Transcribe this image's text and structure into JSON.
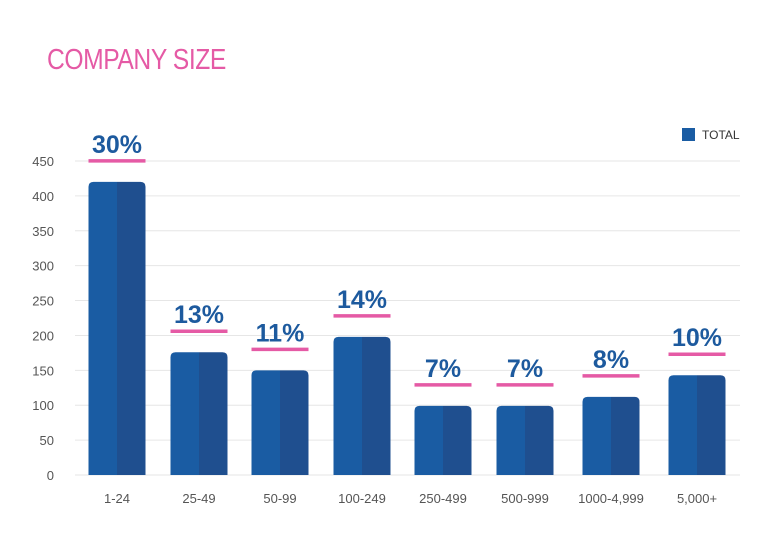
{
  "chart_data": {
    "type": "bar",
    "title": "COMPANY SIZE",
    "categories": [
      "1-24",
      "25-49",
      "50-99",
      "100-249",
      "250-499",
      "500-999",
      "1000-4,999",
      "5,000+"
    ],
    "series": [
      {
        "name": "TOTAL",
        "values": [
          420,
          176,
          150,
          198,
          99,
          99,
          112,
          143
        ]
      }
    ],
    "data_labels": [
      "30%",
      "13%",
      "11%",
      "14%",
      "7%",
      "7%",
      "8%",
      "10%"
    ],
    "ylim": [
      0,
      450
    ],
    "yticks": [
      0,
      50,
      100,
      150,
      200,
      250,
      300,
      350,
      400,
      450
    ],
    "grid": true,
    "legend": "top-right",
    "colors": {
      "bar_left": "#1a5ca3",
      "bar_right": "#1f4f8f",
      "accent_line": "#e55aa5",
      "label": "#1d5a9e",
      "title": "#e55aa5"
    }
  }
}
